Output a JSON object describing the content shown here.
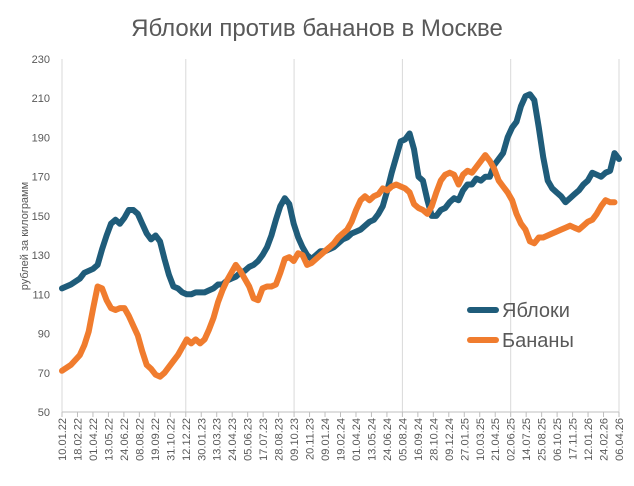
{
  "chart_data": {
    "type": "line",
    "title": "Яблоки против бананов в Москве",
    "ylabel": "рублей за килограмм",
    "xlabel": "",
    "ylim": [
      50,
      230
    ],
    "yticks": [
      50,
      70,
      90,
      110,
      130,
      150,
      170,
      190,
      210,
      230
    ],
    "x_tick_labels": [
      "10.01.22",
      "18.02.22",
      "01.04.22",
      "13.05.22",
      "24.06.22",
      "08.08.22",
      "19.09.22",
      "31.10.22",
      "12.12.22",
      "30.01.23",
      "13.03.23",
      "24.04.23",
      "05.06.23",
      "17.07.23",
      "28.08.23",
      "09.10.23",
      "20.11.23",
      "09.01.24",
      "19.02.24",
      "01.04.24",
      "13.05.24",
      "24.06.24",
      "05.08.24",
      "16.09.24",
      "28.10.24",
      "09.12.24",
      "27.01.25",
      "10.03.25",
      "21.04.25",
      "02.06.25",
      "14.07.25",
      "25.08.25",
      "06.10.25",
      "17.11.25",
      "12.01.26",
      "24.02.26",
      "06.04.26"
    ],
    "x_major_labels": [
      "10.01.22",
      "12.12.22",
      "09.10.23",
      "05.08.24",
      "02.06.25",
      "06.04.26"
    ],
    "grid": {
      "vertical_major": true,
      "horizontal": false
    },
    "legend": "right",
    "series": [
      {
        "name": "Яблоки",
        "color": "#1F5C7A",
        "values": [
          [
            0,
            113
          ],
          [
            2,
            115
          ],
          [
            4,
            118
          ],
          [
            5,
            121
          ],
          [
            7,
            123
          ],
          [
            8,
            125
          ],
          [
            9,
            133
          ],
          [
            10,
            140
          ],
          [
            11,
            146
          ],
          [
            12,
            148
          ],
          [
            13,
            146
          ],
          [
            14,
            149
          ],
          [
            15,
            153
          ],
          [
            16,
            153
          ],
          [
            17,
            151
          ],
          [
            18,
            146
          ],
          [
            19,
            141
          ],
          [
            20,
            138
          ],
          [
            21,
            140
          ],
          [
            22,
            137
          ],
          [
            23,
            128
          ],
          [
            24,
            120
          ],
          [
            25,
            114
          ],
          [
            26,
            113
          ],
          [
            27,
            111
          ],
          [
            28,
            110
          ],
          [
            29,
            110
          ],
          [
            30,
            111
          ],
          [
            31,
            111
          ],
          [
            32,
            111
          ],
          [
            33,
            112
          ],
          [
            34,
            113
          ],
          [
            35,
            115
          ],
          [
            36,
            115
          ],
          [
            37,
            117
          ],
          [
            38,
            118
          ],
          [
            39,
            119
          ],
          [
            40,
            121
          ],
          [
            41,
            122
          ],
          [
            42,
            124
          ],
          [
            43,
            125
          ],
          [
            44,
            127
          ],
          [
            45,
            130
          ],
          [
            46,
            134
          ],
          [
            47,
            140
          ],
          [
            48,
            148
          ],
          [
            49,
            155
          ],
          [
            50,
            159
          ],
          [
            51,
            156
          ],
          [
            52,
            146
          ],
          [
            53,
            139
          ],
          [
            54,
            134
          ],
          [
            55,
            130
          ],
          [
            56,
            128
          ],
          [
            57,
            130
          ],
          [
            58,
            132
          ],
          [
            59,
            132
          ],
          [
            60,
            133
          ],
          [
            61,
            134
          ],
          [
            62,
            136
          ],
          [
            63,
            138
          ],
          [
            64,
            139
          ],
          [
            65,
            141
          ],
          [
            66,
            142
          ],
          [
            67,
            143
          ],
          [
            68,
            145
          ],
          [
            69,
            147
          ],
          [
            70,
            148
          ],
          [
            71,
            151
          ],
          [
            72,
            155
          ],
          [
            73,
            163
          ],
          [
            74,
            172
          ],
          [
            75,
            180
          ],
          [
            76,
            188
          ],
          [
            77,
            189
          ],
          [
            78,
            192
          ],
          [
            79,
            184
          ],
          [
            80,
            170
          ],
          [
            81,
            168
          ],
          [
            82,
            158
          ],
          [
            83,
            150
          ],
          [
            84,
            150
          ],
          [
            85,
            153
          ],
          [
            86,
            154
          ],
          [
            87,
            157
          ],
          [
            88,
            159
          ],
          [
            89,
            158
          ],
          [
            90,
            163
          ],
          [
            91,
            166
          ],
          [
            92,
            166
          ],
          [
            93,
            169
          ],
          [
            94,
            168
          ],
          [
            95,
            170
          ],
          [
            96,
            170
          ],
          [
            97,
            176
          ],
          [
            98,
            179
          ],
          [
            99,
            182
          ],
          [
            100,
            190
          ],
          [
            101,
            195
          ],
          [
            102,
            198
          ],
          [
            103,
            206
          ],
          [
            104,
            211
          ],
          [
            105,
            212
          ],
          [
            106,
            209
          ],
          [
            107,
            195
          ],
          [
            108,
            180
          ],
          [
            109,
            168
          ],
          [
            110,
            164
          ],
          [
            111,
            162
          ],
          [
            112,
            160
          ],
          [
            113,
            157
          ],
          [
            114,
            159
          ],
          [
            115,
            161
          ],
          [
            116,
            163
          ],
          [
            117,
            166
          ],
          [
            118,
            168
          ],
          [
            119,
            172
          ],
          [
            120,
            171
          ],
          [
            121,
            170
          ],
          [
            122,
            172
          ],
          [
            123,
            173
          ],
          [
            124,
            182
          ],
          [
            125,
            179
          ]
        ]
      },
      {
        "name": "Бананы",
        "color": "#F07C2E",
        "values": [
          [
            0,
            71
          ],
          [
            2,
            74
          ],
          [
            4,
            79
          ],
          [
            5,
            84
          ],
          [
            6,
            91
          ],
          [
            7,
            103
          ],
          [
            8,
            114
          ],
          [
            9,
            113
          ],
          [
            10,
            107
          ],
          [
            11,
            103
          ],
          [
            12,
            102
          ],
          [
            13,
            103
          ],
          [
            14,
            103
          ],
          [
            15,
            99
          ],
          [
            16,
            94
          ],
          [
            17,
            89
          ],
          [
            18,
            81
          ],
          [
            19,
            74
          ],
          [
            20,
            72
          ],
          [
            21,
            69
          ],
          [
            22,
            68
          ],
          [
            23,
            70
          ],
          [
            24,
            73
          ],
          [
            25,
            76
          ],
          [
            26,
            79
          ],
          [
            27,
            83
          ],
          [
            28,
            87
          ],
          [
            29,
            85
          ],
          [
            30,
            87
          ],
          [
            31,
            85
          ],
          [
            32,
            87
          ],
          [
            33,
            92
          ],
          [
            34,
            98
          ],
          [
            35,
            106
          ],
          [
            36,
            112
          ],
          [
            37,
            117
          ],
          [
            38,
            121
          ],
          [
            39,
            125
          ],
          [
            40,
            122
          ],
          [
            41,
            118
          ],
          [
            42,
            114
          ],
          [
            43,
            108
          ],
          [
            44,
            107
          ],
          [
            45,
            113
          ],
          [
            46,
            114
          ],
          [
            47,
            114
          ],
          [
            48,
            115
          ],
          [
            49,
            121
          ],
          [
            50,
            128
          ],
          [
            51,
            129
          ],
          [
            52,
            127
          ],
          [
            53,
            131
          ],
          [
            54,
            130
          ],
          [
            55,
            125
          ],
          [
            56,
            126
          ],
          [
            57,
            128
          ],
          [
            58,
            130
          ],
          [
            59,
            132
          ],
          [
            60,
            134
          ],
          [
            61,
            136
          ],
          [
            62,
            139
          ],
          [
            63,
            141
          ],
          [
            64,
            143
          ],
          [
            65,
            147
          ],
          [
            66,
            153
          ],
          [
            67,
            158
          ],
          [
            68,
            160
          ],
          [
            69,
            158
          ],
          [
            70,
            160
          ],
          [
            71,
            161
          ],
          [
            72,
            164
          ],
          [
            73,
            163
          ],
          [
            74,
            165
          ],
          [
            75,
            166
          ],
          [
            76,
            165
          ],
          [
            77,
            164
          ],
          [
            78,
            162
          ],
          [
            79,
            156
          ],
          [
            80,
            154
          ],
          [
            81,
            153
          ],
          [
            82,
            151
          ],
          [
            83,
            155
          ],
          [
            84,
            162
          ],
          [
            85,
            168
          ],
          [
            86,
            171
          ],
          [
            87,
            172
          ],
          [
            88,
            171
          ],
          [
            89,
            166
          ],
          [
            90,
            171
          ],
          [
            91,
            173
          ],
          [
            92,
            172
          ],
          [
            93,
            175
          ],
          [
            94,
            178
          ],
          [
            95,
            181
          ],
          [
            96,
            178
          ],
          [
            97,
            174
          ],
          [
            98,
            168
          ],
          [
            99,
            165
          ],
          [
            100,
            162
          ],
          [
            101,
            158
          ],
          [
            102,
            151
          ],
          [
            103,
            146
          ],
          [
            104,
            143
          ],
          [
            105,
            137
          ],
          [
            106,
            136
          ],
          [
            107,
            139
          ],
          [
            108,
            139
          ],
          [
            109,
            140
          ],
          [
            110,
            141
          ],
          [
            111,
            142
          ],
          [
            112,
            143
          ],
          [
            113,
            144
          ],
          [
            114,
            145
          ],
          [
            115,
            144
          ],
          [
            116,
            143
          ],
          [
            117,
            145
          ],
          [
            118,
            147
          ],
          [
            119,
            148
          ],
          [
            120,
            151
          ],
          [
            121,
            155
          ],
          [
            122,
            158
          ],
          [
            123,
            157
          ],
          [
            124,
            157
          ]
        ]
      }
    ]
  }
}
